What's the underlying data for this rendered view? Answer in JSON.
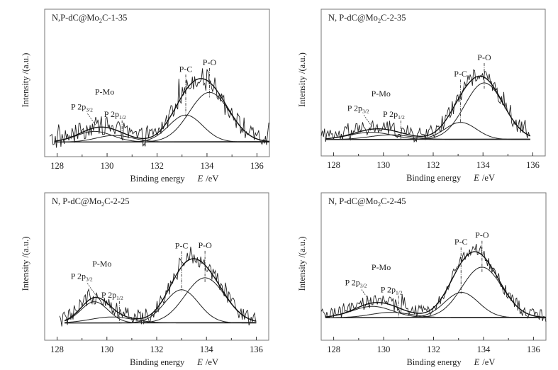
{
  "figure": {
    "description": "P 2p XPS spectra with peak fitting for four N,P-dC@Mo2C samples"
  },
  "chart_data": [
    {
      "type": "line",
      "title": "N,P-dC@Mo2C-1-35",
      "title_parts": {
        "prefix": "N,P-dC@Mo",
        "sub": "2",
        "suffix": "C-1-35"
      },
      "xlabel": "Binding energy",
      "xlabel_var": "E",
      "xlabel_unit": "/eV",
      "ylabel": "Intensity /(a.u.)",
      "xlim": [
        127.5,
        136.5
      ],
      "ylim": [
        -11,
        100
      ],
      "x_ticks": [
        128,
        130,
        132,
        134,
        136
      ],
      "x_minor_ticks": [
        129,
        131,
        133,
        135
      ],
      "grid": false,
      "data_range": [
        127.7,
        136.5
      ],
      "noise_amplitude": 7,
      "components": [
        {
          "name": "P 2p3/2 (P-Mo)",
          "center": 129.5,
          "height": 8,
          "fwhm": 1.7
        },
        {
          "name": "P 2p1/2 (P-Mo)",
          "center": 130.3,
          "height": 5,
          "fwhm": 1.7
        },
        {
          "name": "P-C",
          "center": 133.15,
          "height": 20.3,
          "fwhm": 1.6
        },
        {
          "name": "P-O",
          "center": 134.1,
          "height": 37.4,
          "fwhm": 1.9
        }
      ],
      "annotations": [
        {
          "text": "P-O",
          "x": 134.1,
          "kind": "marker"
        },
        {
          "text": "P-C",
          "x": 133.15,
          "kind": "marker"
        },
        {
          "text": "P-Mo",
          "x": 129.9,
          "kind": "group"
        },
        {
          "text": "P 2p",
          "sub": "3/2",
          "x": 129.5,
          "kind": "leader"
        },
        {
          "text": "P 2p",
          "sub": "1/2",
          "x": 130.6,
          "kind": "marker"
        }
      ]
    },
    {
      "type": "line",
      "title": "N, P-dC@Mo2C-2-35",
      "title_parts": {
        "prefix": "N, P-dC@Mo",
        "sub": "2",
        "suffix": "C-2-35"
      },
      "xlabel": "Binding energy",
      "xlabel_var": "E",
      "xlabel_unit": "/eV",
      "ylabel": "Intensity /(a.u.)",
      "xlim": [
        127.5,
        136.5
      ],
      "ylim": [
        -12.5,
        99
      ],
      "x_ticks": [
        128,
        130,
        132,
        134,
        136
      ],
      "x_minor_ticks": [
        129,
        131,
        133,
        135
      ],
      "grid": false,
      "data_range": [
        127.5,
        135.9
      ],
      "noise_amplitude": 6,
      "components": [
        {
          "name": "P 2p3/2 (P-Mo)",
          "center": 129.5,
          "height": 5.5,
          "fwhm": 2.0
        },
        {
          "name": "P 2p1/2 (P-Mo)",
          "center": 130.3,
          "height": 3.5,
          "fwhm": 2.0
        },
        {
          "name": "P-C",
          "center": 133.1,
          "height": 13,
          "fwhm": 1.5
        },
        {
          "name": "P-O",
          "center": 134.05,
          "height": 43,
          "fwhm": 1.85
        }
      ],
      "annotations": [
        {
          "text": "P-O",
          "x": 134.05,
          "kind": "marker"
        },
        {
          "text": "P-C",
          "x": 133.1,
          "kind": "marker"
        },
        {
          "text": "P-Mo",
          "x": 129.9,
          "kind": "group"
        },
        {
          "text": "P 2p",
          "sub": "3/2",
          "x": 129.5,
          "kind": "leader"
        },
        {
          "text": "P 2p",
          "sub": "1/2",
          "x": 130.7,
          "kind": "marker"
        }
      ]
    },
    {
      "type": "line",
      "title": "N, P-dC@Mo2C-2-25",
      "title_parts": {
        "prefix": "N, P-dC@Mo",
        "sub": "2",
        "suffix": "C-2-25"
      },
      "xlabel": "Binding energy",
      "xlabel_var": "E",
      "xlabel_unit": "/eV",
      "ylabel": "Intensity /(a.u.)",
      "xlim": [
        127.5,
        136.5
      ],
      "ylim": [
        -13,
        98
      ],
      "x_ticks": [
        128,
        130,
        132,
        134,
        136
      ],
      "x_minor_ticks": [
        129,
        131,
        133,
        135
      ],
      "grid": false,
      "data_range": [
        128.1,
        136.0
      ],
      "noise_amplitude": 6,
      "components": [
        {
          "name": "P 2p3/2 (P-Mo)",
          "center": 129.5,
          "height": 16,
          "fwhm": 1.3
        },
        {
          "name": "P 2p1/2 (P-Mo)",
          "center": 130.2,
          "height": 4.5,
          "fwhm": 2.0
        },
        {
          "name": "P-C",
          "center": 133.0,
          "height": 25,
          "fwhm": 1.6
        },
        {
          "name": "P-O",
          "center": 133.94,
          "height": 34,
          "fwhm": 1.9
        }
      ],
      "annotations": [
        {
          "text": "P-O",
          "x": 133.94,
          "kind": "marker"
        },
        {
          "text": "P-C",
          "x": 133.0,
          "kind": "marker"
        },
        {
          "text": "P-Mo",
          "x": 129.8,
          "kind": "group"
        },
        {
          "text": "P 2p",
          "sub": "3/2",
          "x": 129.5,
          "kind": "leader"
        },
        {
          "text": "P 2p",
          "sub": "1/2",
          "x": 130.5,
          "kind": "marker"
        }
      ]
    },
    {
      "type": "line",
      "title": "N, P-dC@Mo2C-2-45",
      "title_parts": {
        "prefix": "N, P-dC@Mo",
        "sub": "2",
        "suffix": "C-2-45"
      },
      "xlabel": "Binding energy",
      "xlabel_var": "E",
      "xlabel_unit": "/eV",
      "ylabel": "Intensity /(a.u.)",
      "xlim": [
        127.5,
        136.5
      ],
      "ylim": [
        -17,
        94
      ],
      "x_ticks": [
        128,
        130,
        132,
        134,
        136
      ],
      "x_minor_ticks": [
        129,
        131,
        133,
        135
      ],
      "grid": false,
      "data_range": [
        127.5,
        136.5
      ],
      "noise_amplitude": 5,
      "components": [
        {
          "name": "P 2p3/2 (P-Mo)",
          "center": 129.55,
          "height": 8.5,
          "fwhm": 1.9
        },
        {
          "name": "P 2p1/2 (P-Mo)",
          "center": 130.3,
          "height": 4,
          "fwhm": 1.9
        },
        {
          "name": "P-C",
          "center": 133.12,
          "height": 19,
          "fwhm": 1.6
        },
        {
          "name": "P-O",
          "center": 133.94,
          "height": 38,
          "fwhm": 1.9
        }
      ],
      "annotations": [
        {
          "text": "P-O",
          "x": 133.94,
          "kind": "marker"
        },
        {
          "text": "P-C",
          "x": 133.1,
          "kind": "marker"
        },
        {
          "text": "P-Mo",
          "x": 129.9,
          "kind": "group"
        },
        {
          "text": "P 2p",
          "sub": "3/2",
          "x": 129.4,
          "kind": "leader"
        },
        {
          "text": "P 2p",
          "sub": "1/2",
          "x": 130.6,
          "kind": "marker"
        }
      ]
    }
  ]
}
